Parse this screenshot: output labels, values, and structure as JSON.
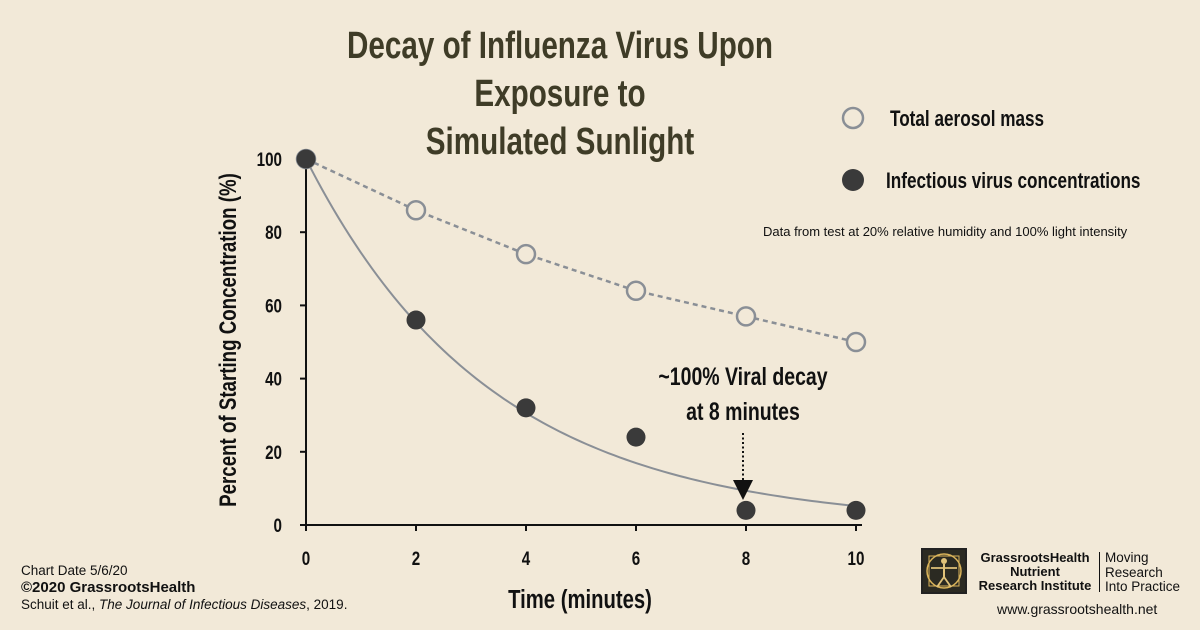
{
  "title_line1": "Decay of Influenza Virus Upon Exposure to",
  "title_line2": "Simulated Sunlight",
  "note": "Data from test at 20% relative humidity and 100% light intensity",
  "annotation_line1": "~100% Viral decay",
  "annotation_line2": "at 8 minutes",
  "footer": {
    "chart_date": "Chart Date 5/6/20",
    "copyright": "©2020 GrassrootsHealth",
    "citation_authors": "Schuit et al., ",
    "citation_journal": "The Journal of Infectious Diseases",
    "citation_year": ", 2019."
  },
  "logo": {
    "org_line1": "GrassrootsHealth",
    "org_line2": "Nutrient",
    "org_line3": "Research Institute",
    "tag_line1": "Moving",
    "tag_line2": "Research",
    "tag_line3": "Into Practice",
    "icon": "vitruvian-man-icon"
  },
  "website": "www.grassrootshealth.net",
  "chart_data": {
    "type": "scatter",
    "title": "Decay of Influenza Virus Upon Exposure to Simulated Sunlight",
    "xlabel": "Time (minutes)",
    "ylabel": "Percent of Starting Concentration (%)",
    "xlim": [
      0,
      10
    ],
    "ylim": [
      0,
      100
    ],
    "xticks": [
      0,
      2,
      4,
      6,
      8,
      10
    ],
    "yticks": [
      0,
      20,
      40,
      60,
      80,
      100
    ],
    "legend_position": "top-right",
    "grid": false,
    "series": [
      {
        "name": "Total aerosol mass",
        "marker": "open-circle",
        "line": "dashed",
        "color": "#8a8f96",
        "x": [
          0,
          2,
          4,
          6,
          8,
          10
        ],
        "y": [
          100,
          86,
          74,
          64,
          57,
          50
        ]
      },
      {
        "name": "Infectious virus concentrations",
        "marker": "filled-circle",
        "line": "solid",
        "color": "#3a3a3a",
        "x": [
          0,
          2,
          4,
          6,
          8,
          10
        ],
        "y": [
          100,
          56,
          32,
          24,
          4,
          4
        ],
        "fit_decay_rate": 0.296
      }
    ]
  }
}
